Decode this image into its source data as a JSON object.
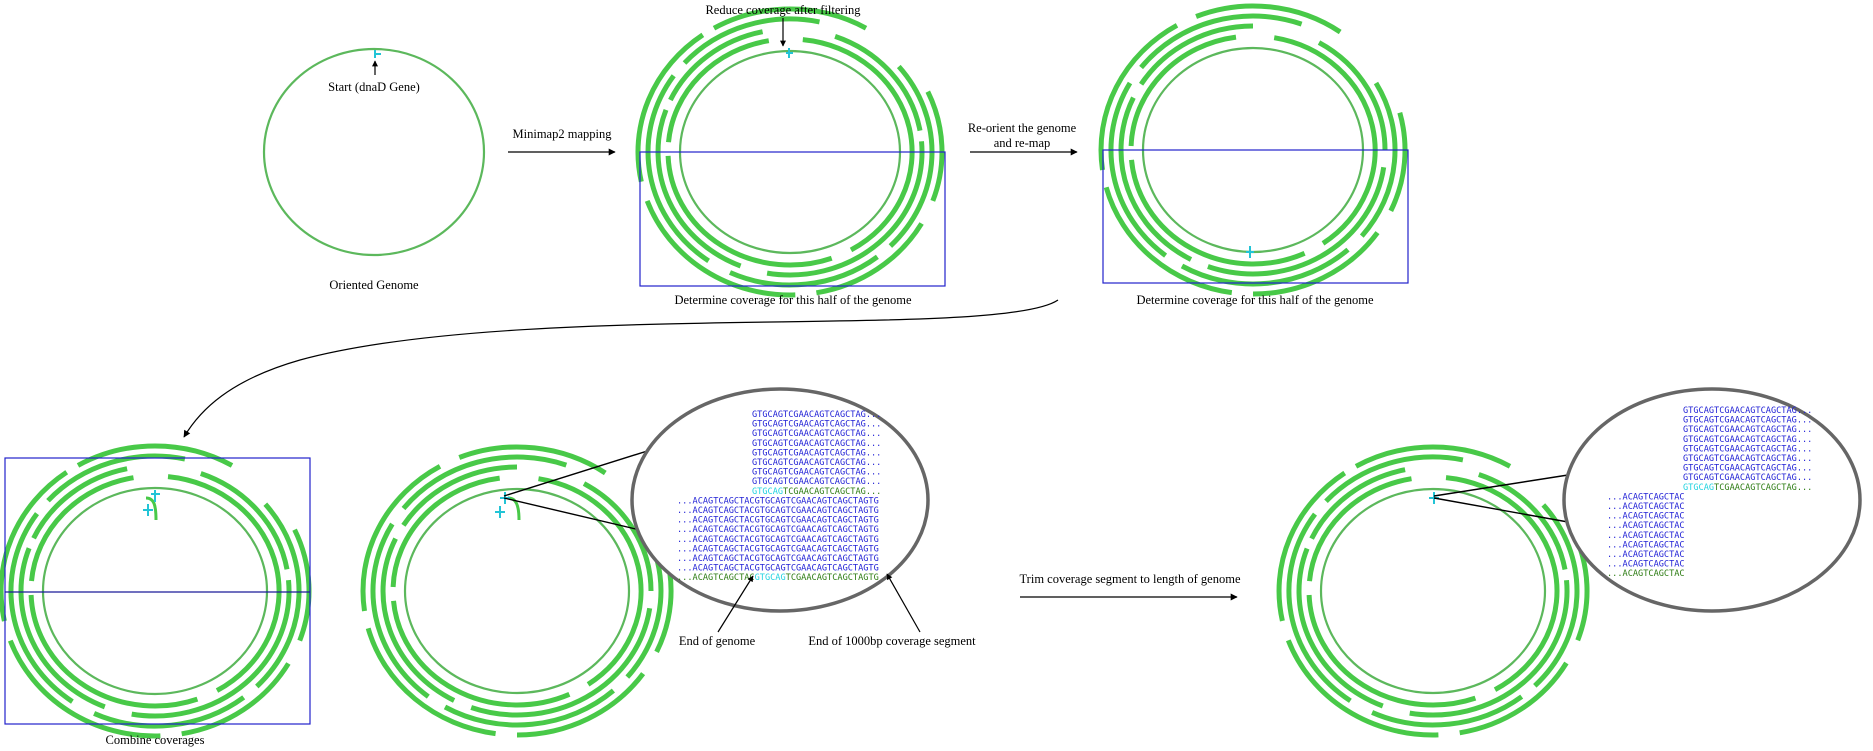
{
  "colors": {
    "genome": "#5cb85c",
    "reads": "#48c948",
    "marker": "#22c4d6",
    "box": "#2222cc",
    "seq_blue": "#2323d6",
    "seq_cyan": "#22d3e0",
    "seq_green": "#2e7d14",
    "zoom_circle": "#666666"
  },
  "labels": {
    "start": "Start (dnaD Gene)",
    "oriented": "Oriented Genome",
    "minimap": "Minimap2 mapping",
    "reduce": "Reduce coverage after filtering",
    "determine1": "Determine coverage for this half of the genome",
    "reorient_1": "Re-orient the genome",
    "reorient_2": "and re-map",
    "determine2": "Determine coverage for this half of the genome",
    "combine": "Combine coverages",
    "end_genome": "End of genome",
    "end_segment": "End of 1000bp coverage segment",
    "trim": "Trim coverage segment to length of genome"
  },
  "zoom1": {
    "top_lines": [
      "GTGCAGTCGAACAGTCAGCTAG...",
      "GTGCAGTCGAACAGTCAGCTAG...",
      "GTGCAGTCGAACAGTCAGCTAG...",
      "GTGCAGTCGAACAGTCAGCTAG...",
      "GTGCAGTCGAACAGTCAGCTAG...",
      "GTGCAGTCGAACAGTCAGCTAG...",
      "GTGCAGTCGAACAGTCAGCTAG...",
      "GTGCAGTCGAACAGTCAGCTAG..."
    ],
    "top_last": {
      "cyan": "GTGCAG",
      "green": "TCGAACAGTCAGCTAG..."
    },
    "bottom_lines": [
      "...ACAGTCAGCTACGTGCAGTCGAACAGTCAGCTAGTG",
      "...ACAGTCAGCTACGTGCAGTCGAACAGTCAGCTAGTG",
      "...ACAGTCAGCTACGTGCAGTCGAACAGTCAGCTAGTG",
      "...ACAGTCAGCTACGTGCAGTCGAACAGTCAGCTAGTG",
      "...ACAGTCAGCTACGTGCAGTCGAACAGTCAGCTAGTG",
      "...ACAGTCAGCTACGTGCAGTCGAACAGTCAGCTAGTG",
      "...ACAGTCAGCTACGTGCAGTCGAACAGTCAGCTAGTG",
      "...ACAGTCAGCTACGTGCAGTCGAACAGTCAGCTAGTG"
    ],
    "bottom_last": {
      "green1": "...ACAGTCAGCTAC",
      "cyan": "GTGCAG",
      "green2": "TCGAACAGTCAGCTAGTG"
    }
  },
  "zoom2": {
    "top_lines": [
      "GTGCAGTCGAACAGTCAGCTAG...",
      "GTGCAGTCGAACAGTCAGCTAG...",
      "GTGCAGTCGAACAGTCAGCTAG...",
      "GTGCAGTCGAACAGTCAGCTAG...",
      "GTGCAGTCGAACAGTCAGCTAG...",
      "GTGCAGTCGAACAGTCAGCTAG...",
      "GTGCAGTCGAACAGTCAGCTAG...",
      "GTGCAGTCGAACAGTCAGCTAG..."
    ],
    "top_last": {
      "cyan": "GTGCAG",
      "green": "TCGAACAGTCAGCTAG..."
    },
    "bottom_lines": [
      "...ACAGTCAGCTAC",
      "...ACAGTCAGCTAC",
      "...ACAGTCAGCTAC",
      "...ACAGTCAGCTAC",
      "...ACAGTCAGCTAC",
      "...ACAGTCAGCTAC",
      "...ACAGTCAGCTAC",
      "...ACAGTCAGCTAC"
    ],
    "bottom_last": {
      "green1": "...ACAGTCAGCTAC"
    }
  }
}
